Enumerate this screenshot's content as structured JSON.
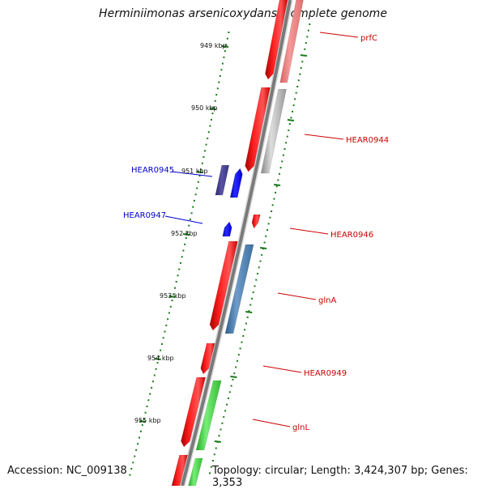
{
  "title": "Herminiimonas arsenicoxydans, complete genome",
  "accession": "Accession: NC_009138",
  "topology": "Topology: circular; Length: 3,424,307 bp; Genes: 3,353",
  "colors": {
    "backbone": "#808080",
    "forward_strand": "#ff0000",
    "reverse_strand": "#0000ff",
    "ruler": "#1a7a1a",
    "forward_label": "#cc0000",
    "reverse_label": "#0000cc"
  },
  "ruler_labels": [
    "949 kbp",
    "950 kbp",
    "951 kbp",
    "952 kbp",
    "953 kbp",
    "954 kbp",
    "955 kbp"
  ],
  "gene_labels": [
    "prfC",
    "HEAR0944",
    "HEAR0945",
    "HEAR0947",
    "HEAR0946",
    "glnA",
    "HEAR0949",
    "glnL"
  ]
}
